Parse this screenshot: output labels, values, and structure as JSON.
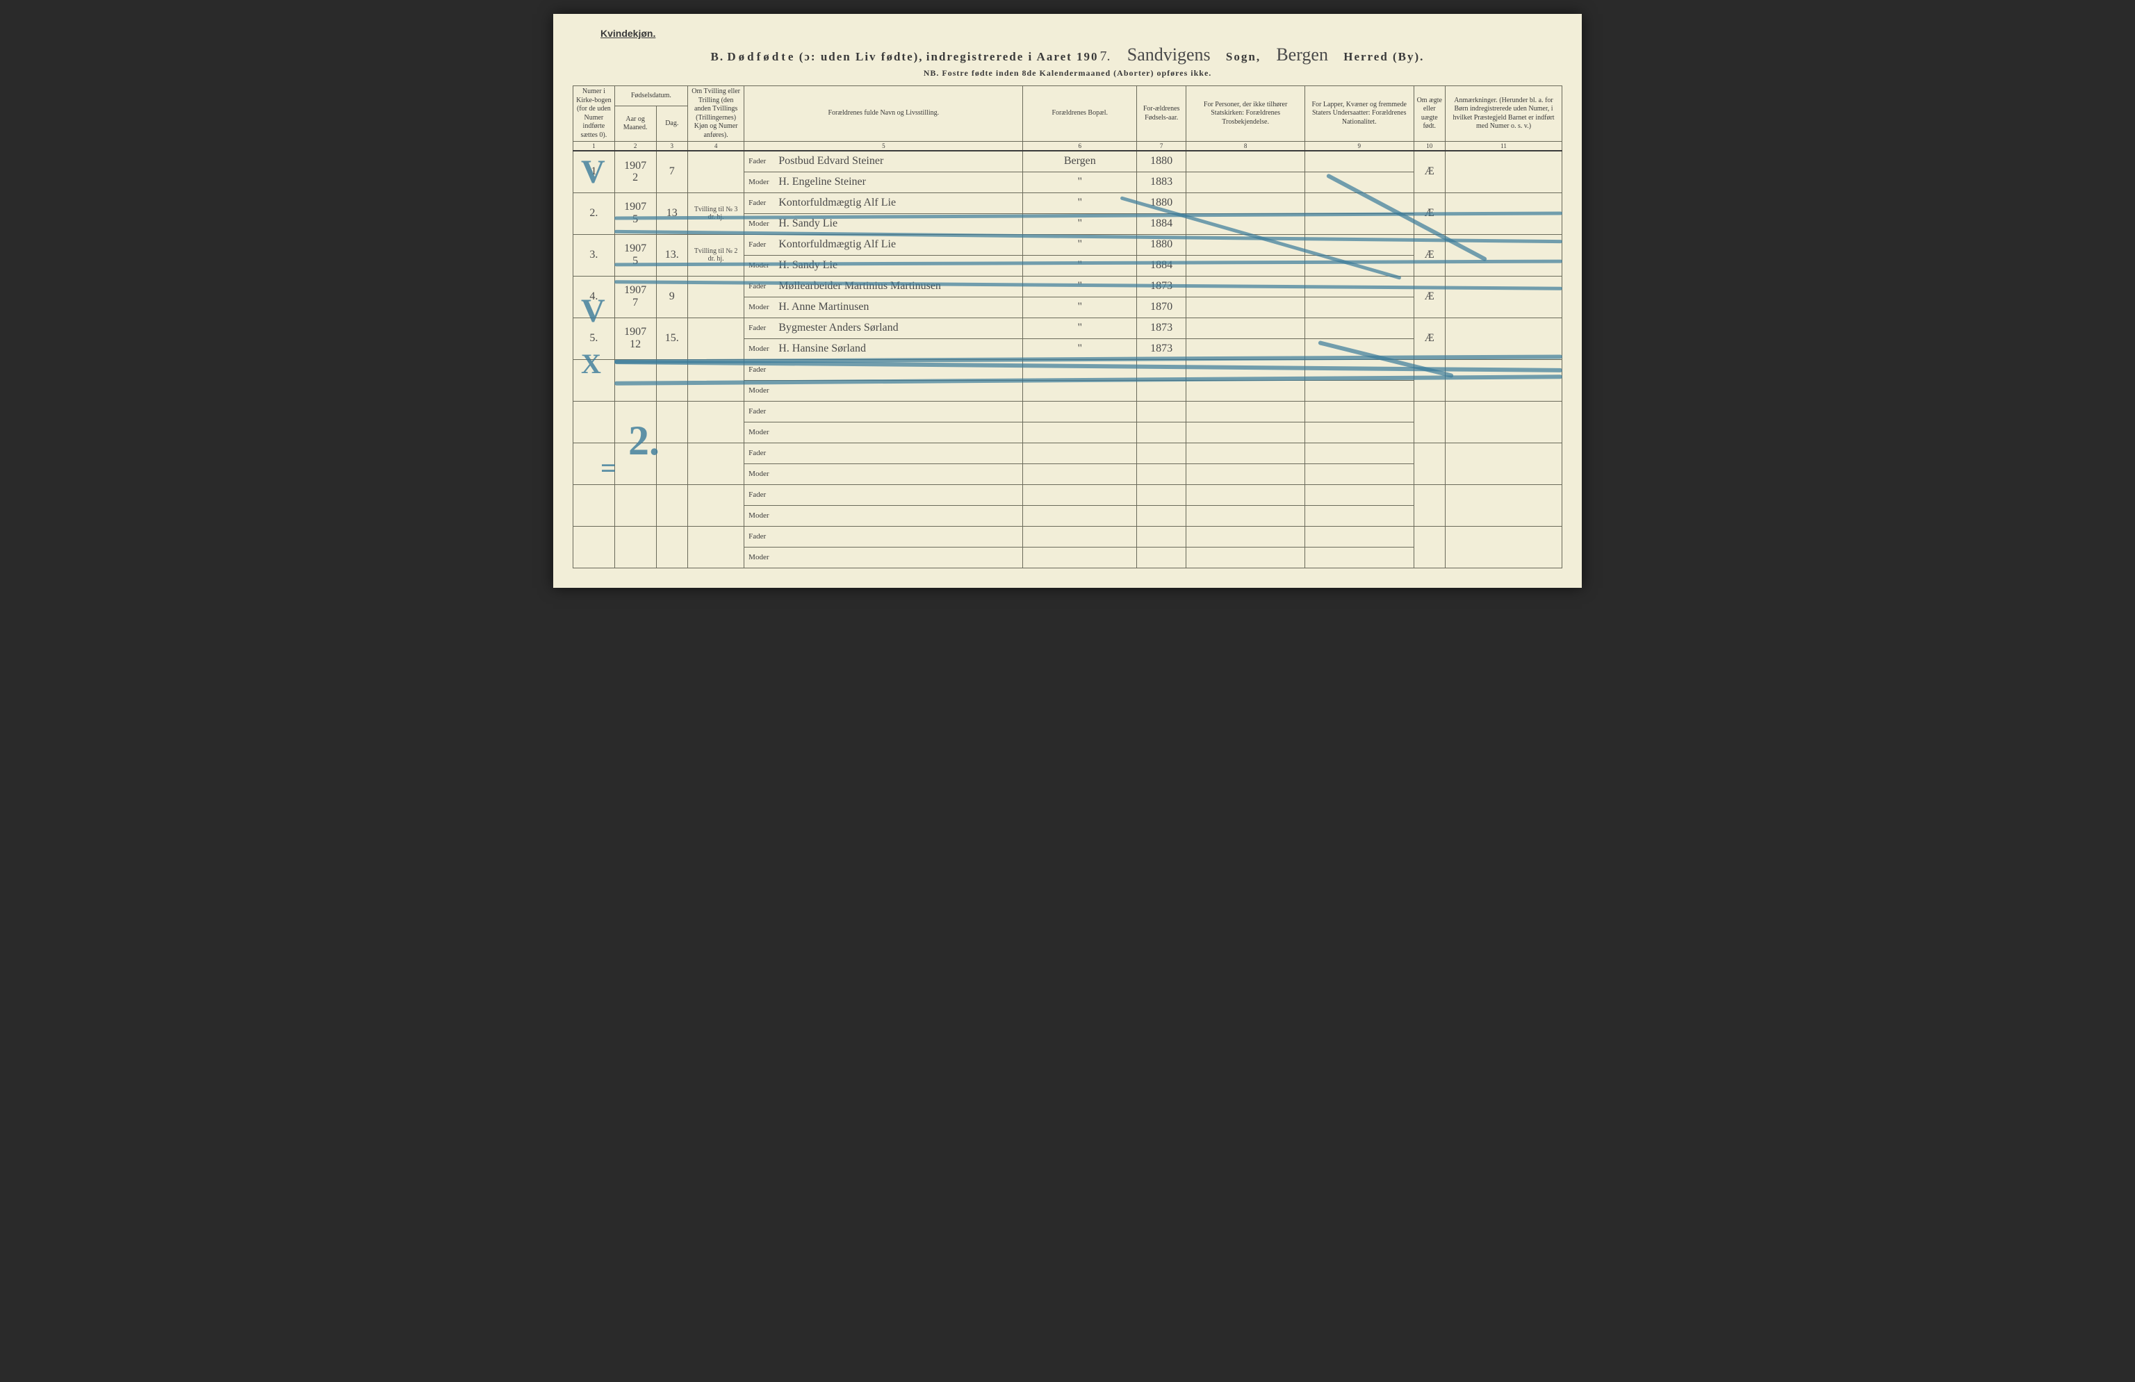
{
  "header": {
    "gender": "Kvindekjøn.",
    "title_prefix": "B.",
    "title_main": "Dødfødte",
    "title_paren": "(ɔ: uden Liv fødte),",
    "title_mid": "indregistrerede i Aaret 190",
    "year_suffix": "7.",
    "sogn_value": "Sandvigens",
    "sogn_label": "Sogn,",
    "herred_value": "Bergen",
    "herred_label": "Herred (By).",
    "subtitle": "NB.  Fostre fødte inden 8de Kalendermaaned (Aborter) opføres ikke."
  },
  "columns": {
    "c1": "Numer i Kirke-bogen (for de uden Numer indførte sættes 0).",
    "c2_group": "Fødselsdatum.",
    "c2a": "Aar og Maaned.",
    "c2b": "Dag.",
    "c4": "Om Tvilling eller Trilling (den anden Tvillings (Trillingernes) Kjøn og Numer anføres).",
    "c5": "Forældrenes fulde Navn og Livsstilling.",
    "c6": "Forældrenes Bopæl.",
    "c7": "For-ældrenes Fødsels-aar.",
    "c8": "For Personer, der ikke tilhører Statskirken: Forældrenes Trosbekjendelse.",
    "c9": "For Lapper, Kvæner og fremmede Staters Undersaatter: Forældrenes Nationalitet.",
    "c10": "Om ægte eller uægte født.",
    "c11": "Anmærkninger. (Herunder bl. a. for Børn indregistrerede uden Numer, i hvilket Præstegjeld Barnet er indført med Numer o. s. v.)"
  },
  "colnums": [
    "1",
    "2",
    "3",
    "4",
    "5",
    "6",
    "7",
    "8",
    "9",
    "10",
    "11"
  ],
  "parent_labels": {
    "father": "Fader",
    "mother": "Moder"
  },
  "rows": [
    {
      "num": "1",
      "year_month": "1907\n2",
      "day": "7",
      "twin": "",
      "father": "Postbud Edvard Steiner",
      "mother": "H. Engeline Steiner",
      "bopael_f": "Bergen",
      "bopael_m": "\"",
      "faar_f": "1880",
      "faar_m": "1883",
      "aegte": "Æ"
    },
    {
      "num": "2.",
      "year_month": "1907\n5",
      "day": "13",
      "twin": "Tvilling til № 3 dr. hj.",
      "father": "Kontorfuldmægtig Alf Lie",
      "mother": "H. Sandy Lie",
      "bopael_f": "\"",
      "bopael_m": "\"",
      "faar_f": "1880",
      "faar_m": "1884",
      "aegte": "Æ"
    },
    {
      "num": "3.",
      "year_month": "1907\n5",
      "day": "13.",
      "twin": "Tvilling til № 2 dr. hj.",
      "father": "Kontorfuldmægtig Alf Lie",
      "mother": "H. Sandy Lie",
      "bopael_f": "\"",
      "bopael_m": "\"",
      "faar_f": "1880",
      "faar_m": "1884",
      "aegte": "Æ"
    },
    {
      "num": "4.",
      "year_month": "1907\n7",
      "day": "9",
      "twin": "",
      "father": "Møllearbeider Martinius Martinusen",
      "mother": "H. Anne Martinusen",
      "bopael_f": "\"",
      "bopael_m": "\"",
      "faar_f": "1873",
      "faar_m": "1870",
      "aegte": "Æ"
    },
    {
      "num": "5.",
      "year_month": "1907\n12",
      "day": "15.",
      "twin": "",
      "father": "Bygmester Anders Sørland",
      "mother": "H. Hansine Sørland",
      "bopael_f": "\"",
      "bopael_m": "\"",
      "faar_f": "1873",
      "faar_m": "1873",
      "aegte": "Æ"
    }
  ],
  "empty_rows": 5,
  "marks": {
    "check_positions": [
      "228",
      "410",
      "468",
      "600"
    ],
    "x_position": "582",
    "big2_top": "640",
    "stroke_color": "#3a7a9a"
  },
  "colors": {
    "paper": "#f2eed8",
    "ink": "#3a3a3a",
    "rule": "#6a6a5a",
    "pencil_blue": "#3a7a9a"
  }
}
